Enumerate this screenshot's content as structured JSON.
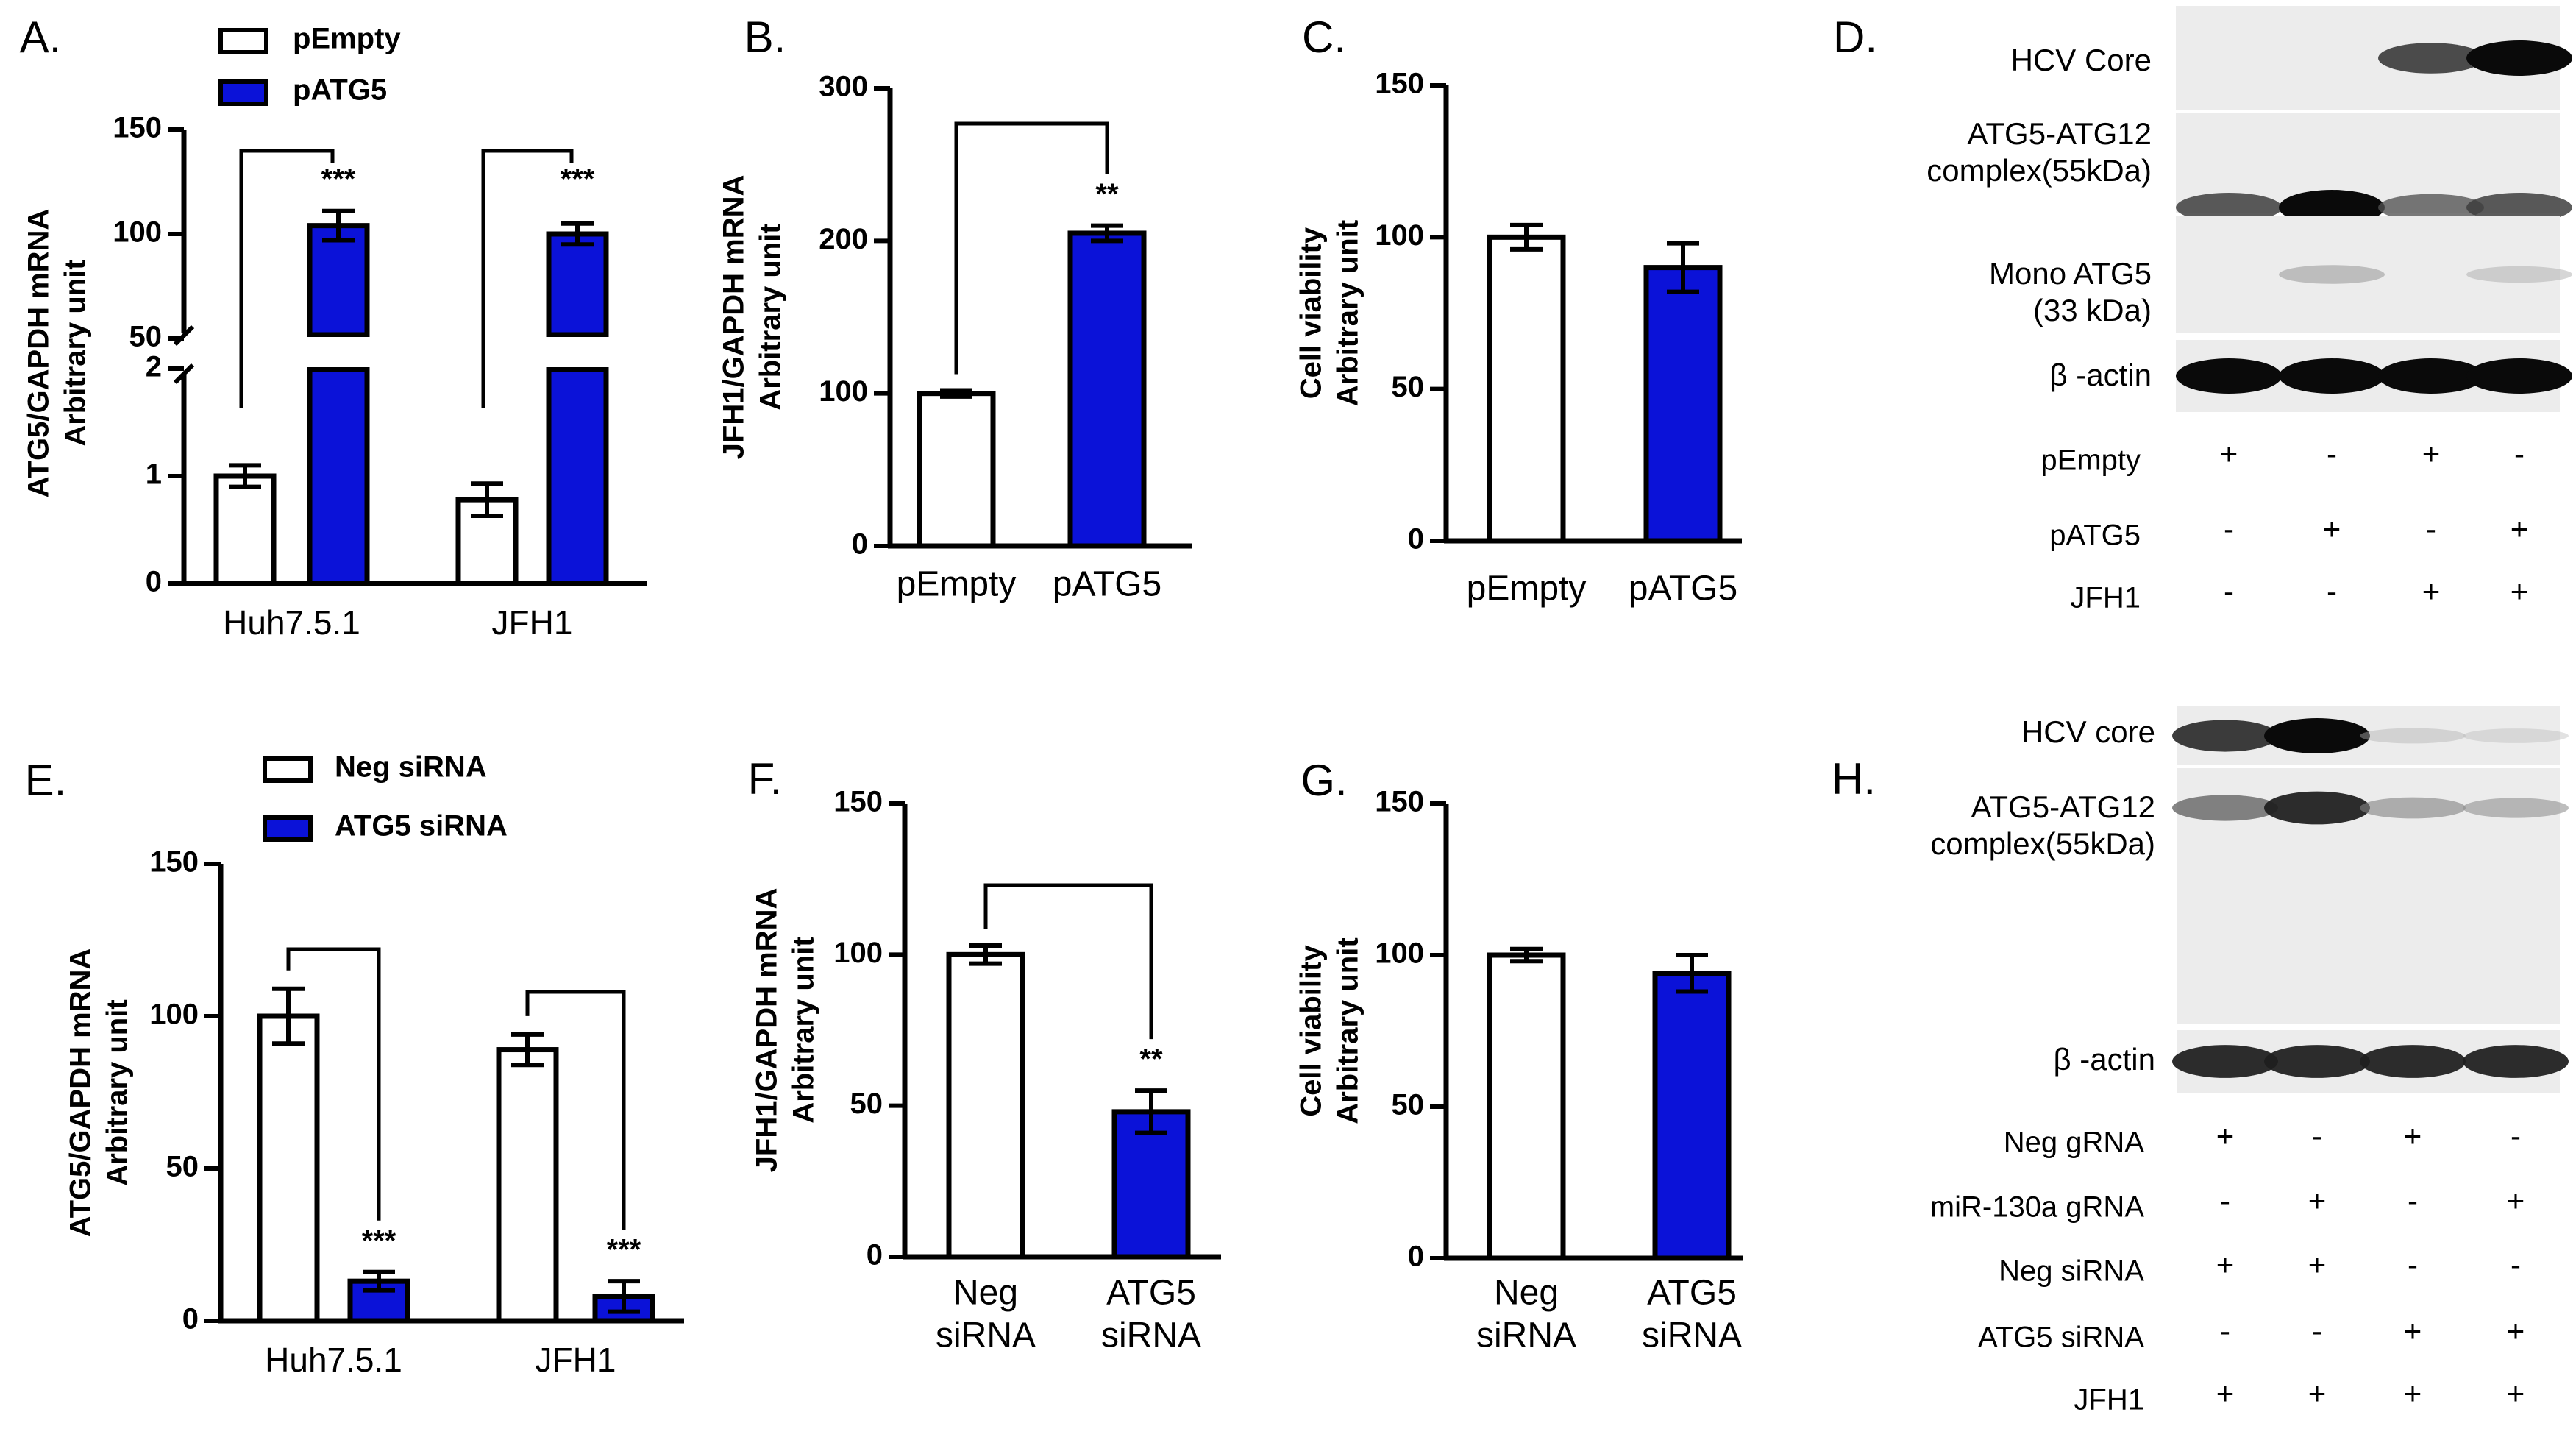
{
  "colors": {
    "empty_fill": "#ffffff",
    "treat_fill": "#0b12d8",
    "stroke": "#000000"
  },
  "legends": {
    "A": [
      {
        "label": "pEmpty",
        "fill": "#ffffff"
      },
      {
        "label": "pATG5",
        "fill": "#0b12d8"
      }
    ],
    "E": [
      {
        "label": "Neg siRNA",
        "fill": "#ffffff"
      },
      {
        "label": "ATG5 siRNA",
        "fill": "#0b12d8"
      }
    ]
  },
  "chart_data": [
    {
      "panel": "A.",
      "type": "bar",
      "ylabel": [
        "ATG5/GAPDH mRNA",
        "Arbitrary unit"
      ],
      "categories": [
        "Huh7.5.1",
        "JFH1"
      ],
      "series": [
        {
          "name": "pEmpty",
          "values": [
            1.0,
            0.78
          ],
          "errors": [
            0.1,
            0.15
          ]
        },
        {
          "name": "pATG5",
          "values": [
            104,
            100
          ],
          "errors": [
            7,
            5
          ]
        }
      ],
      "axis_break": {
        "lower_range": [
          0,
          2
        ],
        "upper_range": [
          50,
          150
        ]
      },
      "yticks_lower": [
        "0",
        "1",
        "2"
      ],
      "yticks_upper": [
        "50",
        "100",
        "150"
      ],
      "significance": [
        "***",
        "***"
      ]
    },
    {
      "panel": "B.",
      "type": "bar",
      "ylabel": [
        "JFH1/GAPDH mRNA",
        "Arbitrary unit"
      ],
      "categories": [
        "pEmpty",
        "pATG5"
      ],
      "values": [
        100,
        205
      ],
      "errors": [
        2,
        5
      ],
      "ylim": [
        0,
        300
      ],
      "yticks": [
        "0",
        "100",
        "200",
        "300"
      ],
      "significance": "**"
    },
    {
      "panel": "C.",
      "type": "bar",
      "ylabel": [
        "Cell viability",
        "Arbitrary unit"
      ],
      "categories": [
        "pEmpty",
        "pATG5"
      ],
      "values": [
        100,
        90
      ],
      "errors": [
        4,
        8
      ],
      "ylim": [
        0,
        150
      ],
      "yticks": [
        "0",
        "50",
        "100",
        "150"
      ]
    },
    {
      "panel": "E.",
      "type": "bar",
      "ylabel": [
        "ATG5/GAPDH mRNA",
        "Arbitrary unit"
      ],
      "categories": [
        "Huh7.5.1",
        "JFH1"
      ],
      "series": [
        {
          "name": "Neg siRNA",
          "values": [
            100,
            89
          ],
          "errors": [
            9,
            5
          ]
        },
        {
          "name": "ATG5 siRNA",
          "values": [
            13,
            8
          ],
          "errors": [
            3,
            5
          ]
        }
      ],
      "ylim": [
        0,
        150
      ],
      "yticks": [
        "0",
        "50",
        "100",
        "150"
      ],
      "significance": [
        "***",
        "***"
      ]
    },
    {
      "panel": "F.",
      "type": "bar",
      "ylabel": [
        "JFH1/GAPDH mRNA",
        "Arbitrary unit"
      ],
      "categories": [
        "Neg siRNA",
        "ATG5 siRNA"
      ],
      "categories_display": [
        [
          "Neg",
          "siRNA"
        ],
        [
          "ATG5",
          "siRNA"
        ]
      ],
      "values": [
        100,
        48
      ],
      "errors": [
        3,
        7
      ],
      "ylim": [
        0,
        150
      ],
      "yticks": [
        "0",
        "50",
        "100",
        "150"
      ],
      "significance": "**"
    },
    {
      "panel": "G.",
      "type": "bar",
      "ylabel": [
        "Cell viability",
        "Arbitrary unit"
      ],
      "categories": [
        "Neg siRNA",
        "ATG5 siRNA"
      ],
      "categories_display": [
        [
          "Neg",
          "siRNA"
        ],
        [
          "ATG5",
          "siRNA"
        ]
      ],
      "values": [
        100,
        94
      ],
      "errors": [
        2,
        6
      ],
      "ylim": [
        0,
        150
      ],
      "yticks": [
        "0",
        "50",
        "100",
        "150"
      ]
    }
  ],
  "blots": {
    "D": {
      "panel": "D.",
      "bands": [
        {
          "label": [
            "HCV Core"
          ],
          "intensity": [
            0,
            0,
            0.8,
            1.0
          ]
        },
        {
          "label": [
            "ATG5-ATG12",
            "complex(55kDa)"
          ],
          "intensity": [
            0.75,
            1.0,
            0.65,
            0.75
          ]
        },
        {
          "label": [
            "Mono ATG5",
            "(33 kDa)"
          ],
          "intensity": [
            0,
            0.3,
            0,
            0.2
          ]
        },
        {
          "label": [
            "β -actin"
          ],
          "intensity": [
            1.0,
            1.0,
            1.0,
            1.0
          ]
        }
      ],
      "conditions": [
        {
          "label": "pEmpty",
          "signs": [
            "+",
            "-",
            "+",
            "-"
          ]
        },
        {
          "label": "pATG5",
          "signs": [
            "-",
            "+",
            "-",
            "+"
          ]
        },
        {
          "label": "JFH1",
          "signs": [
            "-",
            "-",
            "+",
            "+"
          ]
        }
      ]
    },
    "H": {
      "panel": "H.",
      "bands": [
        {
          "label": [
            "HCV core"
          ],
          "intensity": [
            0.85,
            1.0,
            0.15,
            0.12
          ]
        },
        {
          "label": [
            "ATG5-ATG12",
            "complex(55kDa)"
          ],
          "intensity": [
            0.6,
            0.9,
            0.4,
            0.35
          ]
        },
        {
          "label": [
            "β -actin"
          ],
          "intensity": [
            0.9,
            0.9,
            0.9,
            0.9
          ]
        }
      ],
      "conditions": [
        {
          "label": "Neg gRNA",
          "signs": [
            "+",
            "-",
            "+",
            "-"
          ]
        },
        {
          "label": "miR-130a gRNA",
          "signs": [
            "-",
            "+",
            "-",
            "+"
          ]
        },
        {
          "label": "Neg siRNA",
          "signs": [
            "+",
            "+",
            "-",
            "-"
          ]
        },
        {
          "label": "ATG5  siRNA",
          "signs": [
            "-",
            "-",
            "+",
            "+"
          ]
        },
        {
          "label": "JFH1",
          "signs": [
            "+",
            "+",
            "+",
            "+"
          ]
        }
      ]
    }
  }
}
